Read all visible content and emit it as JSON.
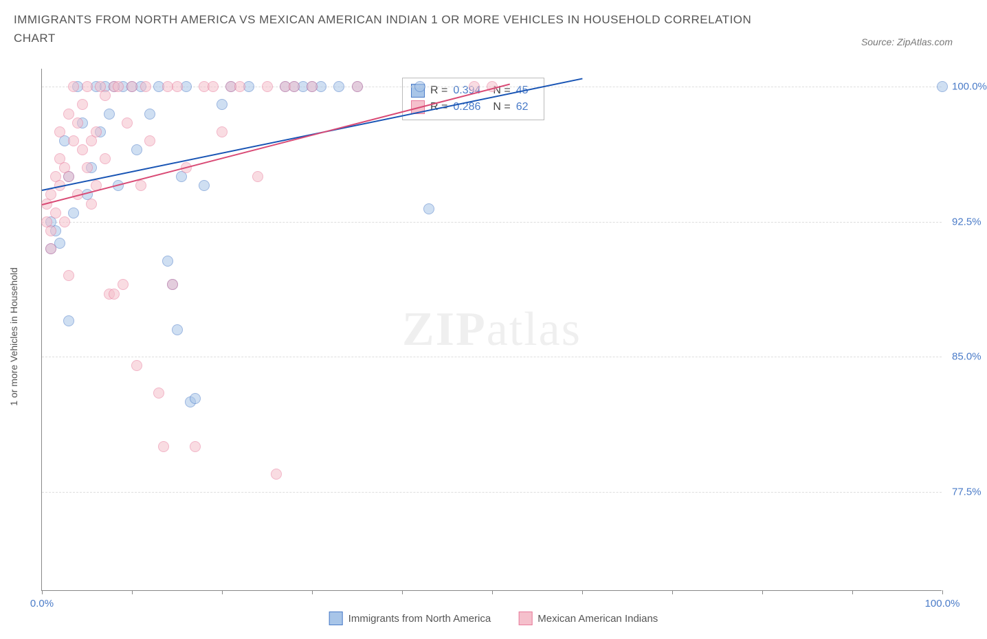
{
  "title": "IMMIGRANTS FROM NORTH AMERICA VS MEXICAN AMERICAN INDIAN 1 OR MORE VEHICLES IN HOUSEHOLD CORRELATION CHART",
  "source_label": "Source: ",
  "source_name": "ZipAtlas.com",
  "watermark_zip": "ZIP",
  "watermark_atlas": "atlas",
  "y_axis_label": "1 or more Vehicles in Household",
  "chart": {
    "type": "scatter",
    "background_color": "#ffffff",
    "grid_color": "#dddddd",
    "axis_color": "#888888",
    "xlim": [
      0,
      100
    ],
    "ylim": [
      72,
      101
    ],
    "x_ticks": [
      0,
      10,
      20,
      30,
      40,
      50,
      60,
      70,
      80,
      90,
      100
    ],
    "x_tick_labels": {
      "0": "0.0%",
      "100": "100.0%"
    },
    "y_ticks": [
      77.5,
      85.0,
      92.5,
      100.0
    ],
    "y_tick_labels": [
      "77.5%",
      "85.0%",
      "92.5%",
      "100.0%"
    ],
    "marker_size": 16,
    "series": [
      {
        "name": "Immigrants from North America",
        "color_fill": "#a8c5e8",
        "color_stroke": "#4a7bc8",
        "R": "0.394",
        "N": "45",
        "trend": {
          "x1": 0,
          "y1": 94.3,
          "x2": 60,
          "y2": 100.5,
          "color": "#1854b4"
        },
        "points": [
          [
            1,
            92.5
          ],
          [
            1,
            91.0
          ],
          [
            1.5,
            92.0
          ],
          [
            2,
            91.3
          ],
          [
            2.5,
            97.0
          ],
          [
            3,
            87.0
          ],
          [
            3,
            95.0
          ],
          [
            3.5,
            93.0
          ],
          [
            4,
            100.0
          ],
          [
            4.5,
            98.0
          ],
          [
            5,
            94.0
          ],
          [
            5.5,
            95.5
          ],
          [
            6,
            100.0
          ],
          [
            6.5,
            97.5
          ],
          [
            7,
            100.0
          ],
          [
            7.5,
            98.5
          ],
          [
            8,
            100.0
          ],
          [
            8.5,
            94.5
          ],
          [
            9,
            100.0
          ],
          [
            10,
            100.0
          ],
          [
            10.5,
            96.5
          ],
          [
            11,
            100.0
          ],
          [
            12,
            98.5
          ],
          [
            13,
            100.0
          ],
          [
            14,
            90.3
          ],
          [
            14.5,
            89.0
          ],
          [
            15,
            86.5
          ],
          [
            15.5,
            95.0
          ],
          [
            16,
            100.0
          ],
          [
            16.5,
            82.5
          ],
          [
            17,
            82.7
          ],
          [
            18,
            94.5
          ],
          [
            20,
            99.0
          ],
          [
            21,
            100.0
          ],
          [
            23,
            100.0
          ],
          [
            27,
            100.0
          ],
          [
            28,
            100.0
          ],
          [
            29,
            100.0
          ],
          [
            30,
            100.0
          ],
          [
            31,
            100.0
          ],
          [
            33,
            100.0
          ],
          [
            35,
            100.0
          ],
          [
            42,
            100.0
          ],
          [
            43,
            93.2
          ],
          [
            100,
            100.0
          ]
        ]
      },
      {
        "name": "Mexican American Indians",
        "color_fill": "#f5c0cc",
        "color_stroke": "#e87a9a",
        "R": "0.286",
        "N": "62",
        "trend": {
          "x1": 0,
          "y1": 93.5,
          "x2": 52,
          "y2": 100.2,
          "color": "#d94a75"
        },
        "points": [
          [
            0.5,
            92.5
          ],
          [
            0.5,
            93.5
          ],
          [
            1,
            94.0
          ],
          [
            1,
            92.0
          ],
          [
            1,
            91.0
          ],
          [
            1.5,
            95.0
          ],
          [
            1.5,
            93.0
          ],
          [
            2,
            96.0
          ],
          [
            2,
            97.5
          ],
          [
            2,
            94.5
          ],
          [
            2.5,
            95.5
          ],
          [
            2.5,
            92.5
          ],
          [
            3,
            98.5
          ],
          [
            3,
            95.0
          ],
          [
            3,
            89.5
          ],
          [
            3.5,
            100.0
          ],
          [
            3.5,
            97.0
          ],
          [
            4,
            98.0
          ],
          [
            4,
            94.0
          ],
          [
            4.5,
            96.5
          ],
          [
            4.5,
            99.0
          ],
          [
            5,
            100.0
          ],
          [
            5,
            95.5
          ],
          [
            5.5,
            97.0
          ],
          [
            5.5,
            93.5
          ],
          [
            6,
            94.5
          ],
          [
            6,
            97.5
          ],
          [
            6.5,
            100.0
          ],
          [
            7,
            96.0
          ],
          [
            7,
            99.5
          ],
          [
            7.5,
            88.5
          ],
          [
            8,
            88.5
          ],
          [
            8,
            100.0
          ],
          [
            8.5,
            100.0
          ],
          [
            9,
            89.0
          ],
          [
            9.5,
            98.0
          ],
          [
            10,
            100.0
          ],
          [
            10.5,
            84.5
          ],
          [
            11,
            94.5
          ],
          [
            11.5,
            100.0
          ],
          [
            12,
            97.0
          ],
          [
            13,
            83.0
          ],
          [
            13.5,
            80.0
          ],
          [
            14,
            100.0
          ],
          [
            14.5,
            89.0
          ],
          [
            15,
            100.0
          ],
          [
            16,
            95.5
          ],
          [
            17,
            80.0
          ],
          [
            18,
            100.0
          ],
          [
            19,
            100.0
          ],
          [
            20,
            97.5
          ],
          [
            21,
            100.0
          ],
          [
            22,
            100.0
          ],
          [
            24,
            95.0
          ],
          [
            25,
            100.0
          ],
          [
            26,
            78.5
          ],
          [
            27,
            100.0
          ],
          [
            28,
            100.0
          ],
          [
            30,
            100.0
          ],
          [
            35,
            100.0
          ],
          [
            48,
            100.0
          ],
          [
            50,
            100.0
          ]
        ]
      }
    ]
  },
  "legend_items": [
    "Immigrants from North America",
    "Mexican American Indians"
  ],
  "tick_label_color": "#4a7bc8",
  "title_color": "#555555"
}
